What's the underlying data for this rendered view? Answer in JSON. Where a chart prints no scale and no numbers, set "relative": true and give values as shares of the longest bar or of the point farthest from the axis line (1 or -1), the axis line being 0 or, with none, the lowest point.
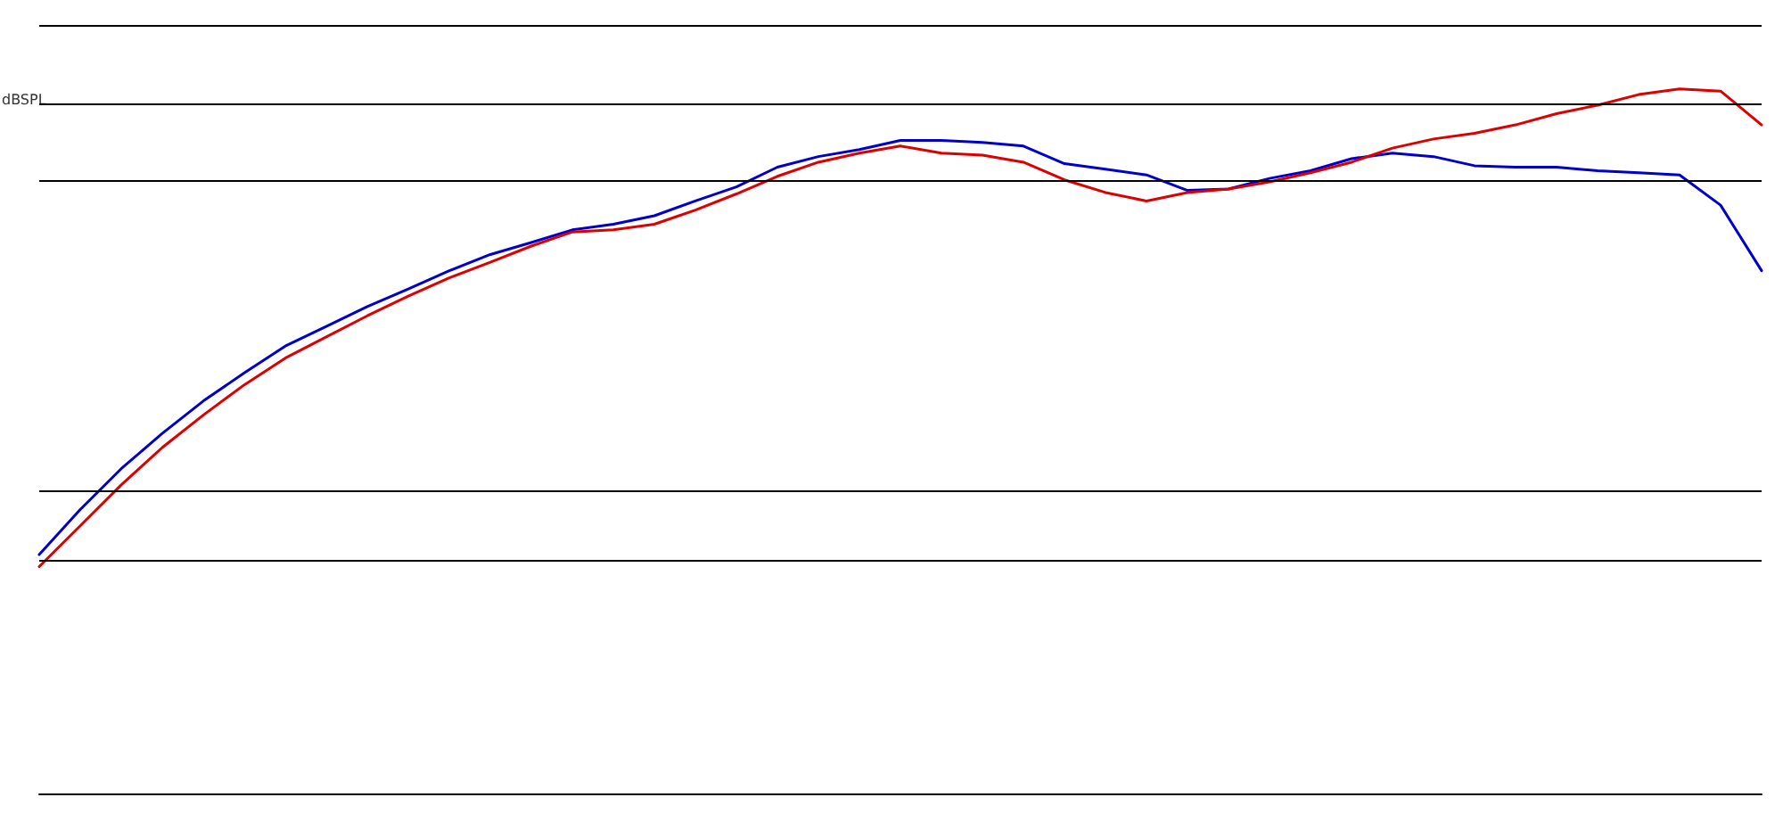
{
  "chart_data": {
    "type": "line",
    "relative": true,
    "ylabel": "dBSPL",
    "grid": false,
    "marker": "none",
    "line_style": "solid",
    "categories": [
      null,
      null,
      null,
      null,
      null,
      null,
      null,
      null,
      null,
      null,
      null,
      null,
      null,
      null,
      null,
      null,
      null,
      null,
      null,
      null,
      null,
      null,
      null,
      null,
      null,
      null,
      null,
      null,
      null,
      null,
      null,
      null,
      null,
      null,
      null,
      null,
      null,
      null,
      null,
      null,
      null,
      null,
      null
    ],
    "series": [
      {
        "color": "#0000cc",
        "values": [
          0.339,
          0.403,
          0.461,
          0.511,
          0.557,
          0.597,
          0.635,
          0.663,
          0.691,
          0.716,
          0.742,
          0.765,
          0.782,
          0.8,
          0.808,
          0.82,
          0.841,
          0.861,
          0.889,
          0.904,
          0.914,
          0.927,
          0.927,
          0.924,
          0.919,
          0.894,
          0.886,
          0.878,
          0.856,
          0.858,
          0.873,
          0.884,
          0.901,
          0.909,
          0.904,
          0.891,
          0.889,
          0.889,
          0.884,
          0.881,
          0.878,
          0.835,
          0.742
        ]
      },
      {
        "color": "#dd0000",
        "values": [
          0.322,
          0.38,
          0.438,
          0.491,
          0.537,
          0.58,
          0.618,
          0.648,
          0.678,
          0.706,
          0.732,
          0.754,
          0.777,
          0.797,
          0.8,
          0.808,
          0.828,
          0.851,
          0.876,
          0.896,
          0.909,
          0.919,
          0.909,
          0.906,
          0.896,
          0.871,
          0.853,
          0.841,
          0.853,
          0.858,
          0.868,
          0.881,
          0.896,
          0.916,
          0.929,
          0.937,
          0.949,
          0.965,
          0.977,
          0.992,
          1,
          0.997,
          0.949
        ]
      }
    ],
    "ref_lines": [
      {
        "axis": "y",
        "value": 1.089,
        "color": "#000000"
      },
      {
        "axis": "y",
        "value": 0.982,
        "color": "#000000"
      },
      {
        "axis": "y",
        "value": 0.873,
        "color": "#000000"
      },
      {
        "axis": "y",
        "value": 0.43,
        "color": "#000000"
      },
      {
        "axis": "y",
        "value": 0.327,
        "color": "#000000"
      }
    ]
  }
}
